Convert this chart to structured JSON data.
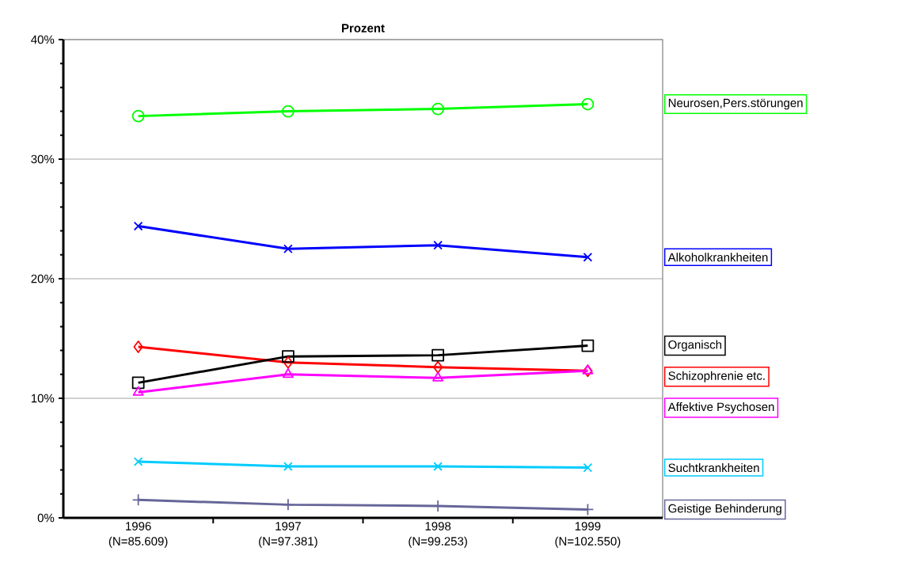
{
  "chart_data": {
    "type": "line",
    "title": "Prozent",
    "categories": [
      "1996 (N=85.609)",
      "1997 (N=97.381)",
      "1998 (N=99.253)",
      "1999 (N=102.550)"
    ],
    "series": [
      {
        "name": "Neurosen,Pers.störungen",
        "color": "#00ff00",
        "marker": "circle",
        "values": [
          33.6,
          34.0,
          34.2,
          34.6
        ]
      },
      {
        "name": "Alkoholkrankheiten",
        "color": "#0000ff",
        "marker": "cross",
        "values": [
          24.4,
          22.5,
          22.8,
          21.8
        ]
      },
      {
        "name": "Schizophrenie etc.",
        "color": "#ff0000",
        "marker": "diamond",
        "values": [
          14.3,
          13.0,
          12.6,
          12.3
        ]
      },
      {
        "name": "Organisch",
        "color": "#000000",
        "marker": "square",
        "values": [
          11.3,
          13.5,
          13.6,
          14.4
        ]
      },
      {
        "name": "Affektive Psychosen",
        "color": "#ff00ff",
        "marker": "triangle",
        "values": [
          10.5,
          12.0,
          11.7,
          12.3
        ]
      },
      {
        "name": "Suchtkrankheiten",
        "color": "#00ccff",
        "marker": "cross",
        "values": [
          4.7,
          4.3,
          4.3,
          4.2
        ]
      },
      {
        "name": "Geistige Behinderung",
        "color": "#666699",
        "marker": "plus",
        "values": [
          1.5,
          1.1,
          1.0,
          0.7
        ]
      }
    ],
    "ylim": [
      0,
      40
    ],
    "yticks": [
      {
        "value": 0,
        "label": "0%"
      },
      {
        "value": 10,
        "label": "10%"
      },
      {
        "value": 20,
        "label": "20%"
      },
      {
        "value": 30,
        "label": "30%"
      },
      {
        "value": 40,
        "label": "40%"
      }
    ],
    "grid": "y",
    "legend": "right",
    "line_style": "solid"
  }
}
